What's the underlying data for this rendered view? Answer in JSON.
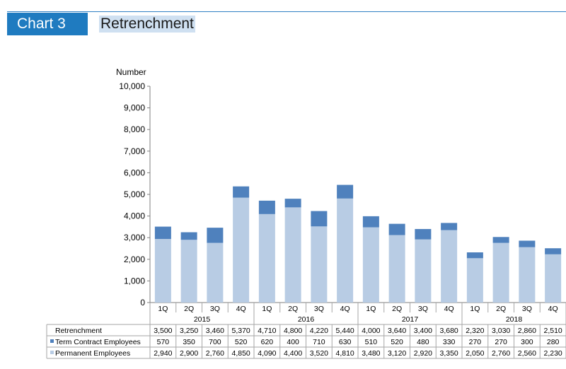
{
  "header": {
    "tag": "Chart 3",
    "title": "Retrenchment"
  },
  "chart_data": {
    "type": "bar",
    "stacked": true,
    "title": "Retrenchment",
    "ylabel": "Number",
    "ylim": [
      0,
      10000
    ],
    "yticks": [
      "0",
      "1,000",
      "2,000",
      "3,000",
      "4,000",
      "5,000",
      "6,000",
      "7,000",
      "8,000",
      "9,000",
      "10,000"
    ],
    "categories": [
      "1Q",
      "2Q",
      "3Q",
      "4Q",
      "1Q",
      "2Q",
      "3Q",
      "4Q",
      "1Q",
      "2Q",
      "3Q",
      "4Q",
      "1Q",
      "2Q",
      "3Q",
      "4Q"
    ],
    "years": [
      "2015",
      "2016",
      "2017",
      "2018"
    ],
    "series": [
      {
        "name": "Permanent Employees",
        "color": "#b8cce4",
        "values": [
          2940,
          2900,
          2760,
          4850,
          4090,
          4400,
          3520,
          4810,
          3480,
          3120,
          2920,
          3350,
          2050,
          2760,
          2560,
          2230
        ],
        "labels": [
          "2,940",
          "2,900",
          "2,760",
          "4,850",
          "4,090",
          "4,400",
          "3,520",
          "4,810",
          "3,480",
          "3,120",
          "2,920",
          "3,350",
          "2,050",
          "2,760",
          "2,560",
          "2,230"
        ]
      },
      {
        "name": "Term Contract Employees",
        "color": "#4f81bd",
        "values": [
          570,
          350,
          700,
          520,
          620,
          400,
          710,
          630,
          510,
          520,
          480,
          330,
          270,
          270,
          300,
          280
        ],
        "labels": [
          "570",
          "350",
          "700",
          "520",
          "620",
          "400",
          "710",
          "630",
          "510",
          "520",
          "480",
          "330",
          "270",
          "270",
          "300",
          "280"
        ]
      }
    ],
    "total": {
      "name": "Retrenchment",
      "labels": [
        "3,500",
        "3,250",
        "3,460",
        "5,370",
        "4,710",
        "4,800",
        "4,220",
        "5,440",
        "4,000",
        "3,640",
        "3,400",
        "3,680",
        "2,320",
        "3,030",
        "2,860",
        "2,510"
      ]
    }
  }
}
